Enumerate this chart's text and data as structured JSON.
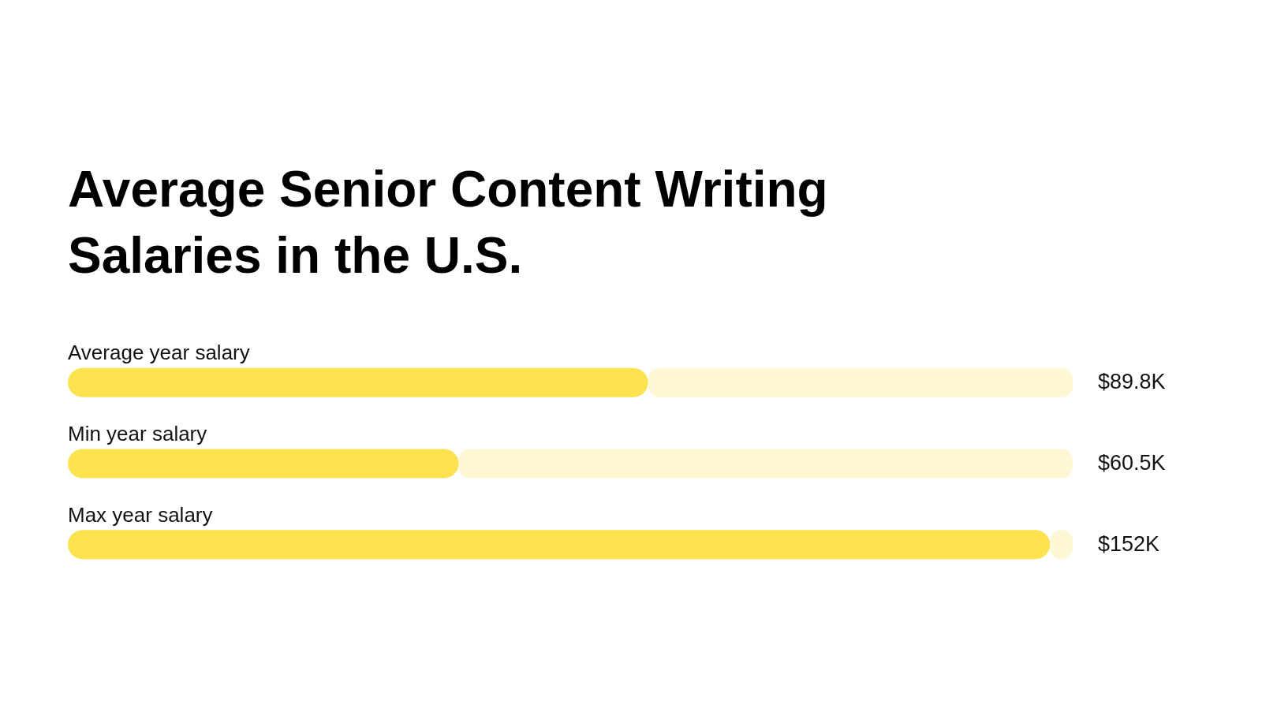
{
  "chart_data": {
    "type": "bar",
    "orientation": "horizontal",
    "stacked": true,
    "title": "Average Senior Content Writing Salaries in the U.S.",
    "categories": [
      "Average year salary",
      "Min year salary",
      "Max year salary"
    ],
    "series": [
      {
        "color": "#fde24f",
        "values": [
          89.8,
          60.5,
          152
        ],
        "value_labels": [
          "$89.8K",
          "$60.5K",
          "$152K"
        ]
      },
      {
        "color": "#fef7d4",
        "values": [
          65.7,
          95.0,
          3.5
        ]
      }
    ],
    "xlim": [
      0,
      155.5
    ],
    "tick_labels": false,
    "grid": false,
    "legend": false
  }
}
